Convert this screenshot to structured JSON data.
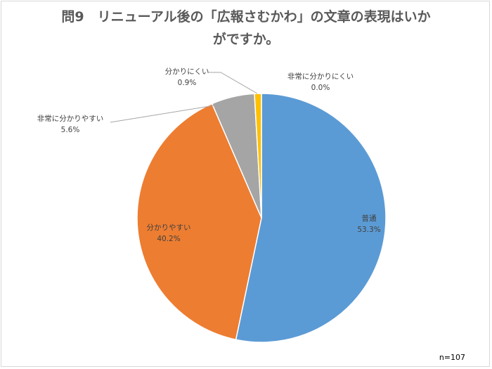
{
  "chart_data": {
    "type": "pie",
    "title_lines": [
      "問9　リニューアル後の「広報さむかわ」の文章の表現はいか",
      "がですか。"
    ],
    "slices": [
      {
        "label": "普通",
        "percent_label": "53.3%",
        "value": 53.3,
        "color": "#5b9bd5"
      },
      {
        "label": "分かりやすい",
        "percent_label": "40.2%",
        "value": 40.2,
        "color": "#ed7d31"
      },
      {
        "label": "非常に分かりやすい",
        "percent_label": "5.6%",
        "value": 5.6,
        "color": "#a5a5a5"
      },
      {
        "label": "分かりにくい",
        "percent_label": "0.9%",
        "value": 0.9,
        "color": "#ffc000"
      },
      {
        "label": "非常に分かりにくい",
        "percent_label": "0.0%",
        "value": 0.0,
        "color": "#4472c4"
      }
    ],
    "note": "n=107"
  }
}
